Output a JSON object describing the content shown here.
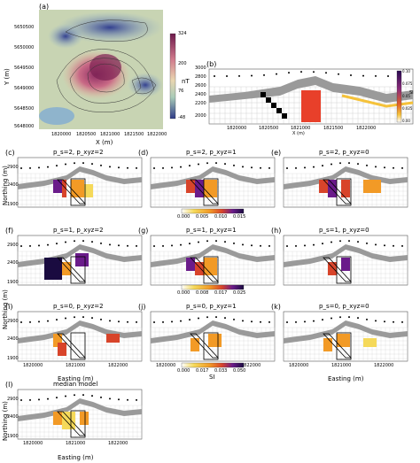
{
  "panel_a": {
    "letter": "(a)",
    "y_ticks": [
      "5650500",
      "5650000",
      "5649500",
      "5649000",
      "5648500",
      "5648000"
    ],
    "x_ticks": [
      "1820000",
      "1820500",
      "1821000",
      "1821500",
      "1822000"
    ],
    "xlabel": "X (m)",
    "ylabel": "Y (m)",
    "colorbar_ticks": [
      "324",
      "200",
      "76",
      "-48"
    ],
    "colorbar_unit": "nT"
  },
  "panel_b": {
    "letter": "(b)",
    "y_ticks": [
      "3000",
      "2800",
      "2600",
      "2400",
      "2200",
      "2000"
    ],
    "x_ticks": [
      "1820000",
      "1820500",
      "1821000",
      "1821500",
      "1822000"
    ],
    "xlabel": "X (m)",
    "ylabel": "Z (m)",
    "colorbar_ticks": [
      "0.10",
      "0.075",
      "0.05",
      "0.025",
      "0.00"
    ],
    "colorbar_unit": "SI"
  },
  "grid_panels": [
    {
      "letter": "(c)",
      "title": "p_s=2, p_xyz=2"
    },
    {
      "letter": "(d)",
      "title": "p_s=2, p_xyz=1"
    },
    {
      "letter": "(e)",
      "title": "p_s=2, p_xyz=0"
    },
    {
      "letter": "(f)",
      "title": "p_s=1, p_xyz=2"
    },
    {
      "letter": "(g)",
      "title": "p_s=1, p_xyz=1"
    },
    {
      "letter": "(h)",
      "title": "p_s=1, p_xyz=0"
    },
    {
      "letter": "(i)",
      "title": "p_s=0, p_xyz=2"
    },
    {
      "letter": "(j)",
      "title": "p_s=0, p_xyz=1"
    },
    {
      "letter": "(k)",
      "title": "p_s=0, p_xyz=0"
    },
    {
      "letter": "(l)",
      "title": "median model"
    }
  ],
  "grid_labels": {
    "northing": "Northing (m)",
    "easting": "Easting (m)",
    "y_top": "2900",
    "y_mid": "2400",
    "y_bot": "1900",
    "x_ticks": [
      "1820000",
      "1821000",
      "1822000"
    ]
  },
  "colorbars": [
    {
      "ticks": [
        "0.000",
        "0.005",
        "0.010",
        "0.015"
      ],
      "unit": ""
    },
    {
      "ticks": [
        "0.000",
        "0.008",
        "0.017",
        "0.025"
      ],
      "unit": ""
    },
    {
      "ticks": [
        "0.000",
        "0.017",
        "0.033",
        "0.050"
      ],
      "unit": "SI"
    }
  ],
  "colors": {
    "inferno_dark": "#1a0b40",
    "inferno_purple": "#6a1b8a",
    "inferno_red": "#d8442a",
    "inferno_orange": "#f29a26",
    "inferno_yellow": "#f5d95a",
    "topo_gray": "#9a9a9a",
    "anomaly_red": "#e8402a"
  }
}
